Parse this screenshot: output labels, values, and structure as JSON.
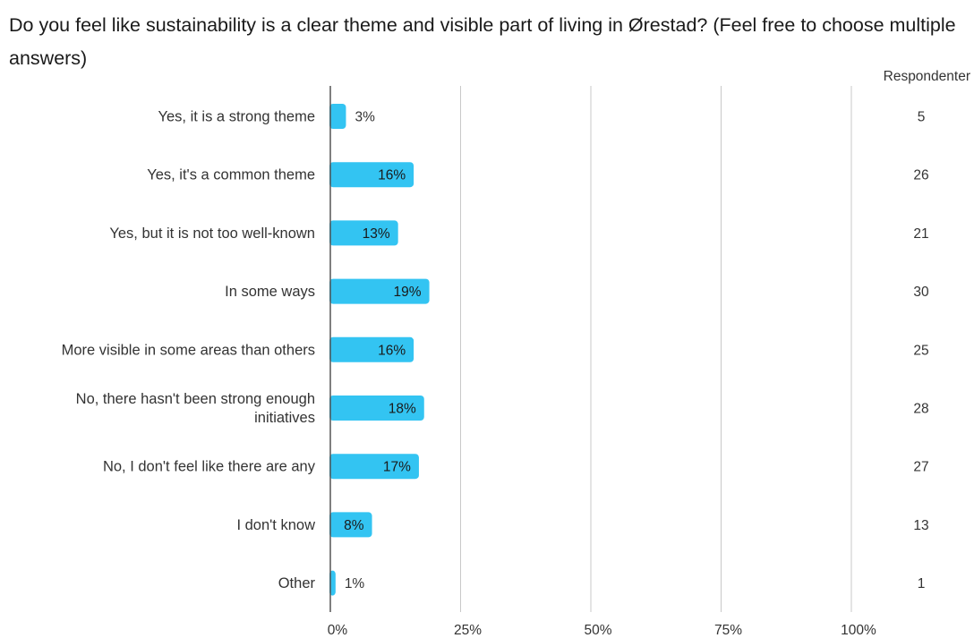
{
  "chart_data": {
    "type": "bar",
    "orientation": "horizontal",
    "title": "Do you feel like sustainability is a clear theme and visible part of living in Ørestad? (Feel free to choose multiple answers)",
    "count_column_header": "Respondenter",
    "xlim": [
      0,
      100
    ],
    "x_ticks": [
      "0%",
      "25%",
      "50%",
      "75%",
      "100%"
    ],
    "x_tick_values": [
      0,
      25,
      50,
      75,
      100
    ],
    "grid": true,
    "bar_color": "#33c4f2",
    "categories": [
      "Yes, it is a strong theme",
      "Yes, it's a common theme",
      "Yes, but it is not too well-known",
      "In some ways",
      "More visible in some areas than others",
      "No, there hasn't been strong enough initiatives",
      "No, I don't feel like there are any",
      "I don't know",
      "Other"
    ],
    "values": [
      3,
      16,
      13,
      19,
      16,
      18,
      17,
      8,
      1
    ],
    "value_labels": [
      "3%",
      "16%",
      "13%",
      "19%",
      "16%",
      "18%",
      "17%",
      "8%",
      "1%"
    ],
    "counts": [
      "5",
      "26",
      "21",
      "30",
      "25",
      "28",
      "27",
      "13",
      "1"
    ]
  }
}
